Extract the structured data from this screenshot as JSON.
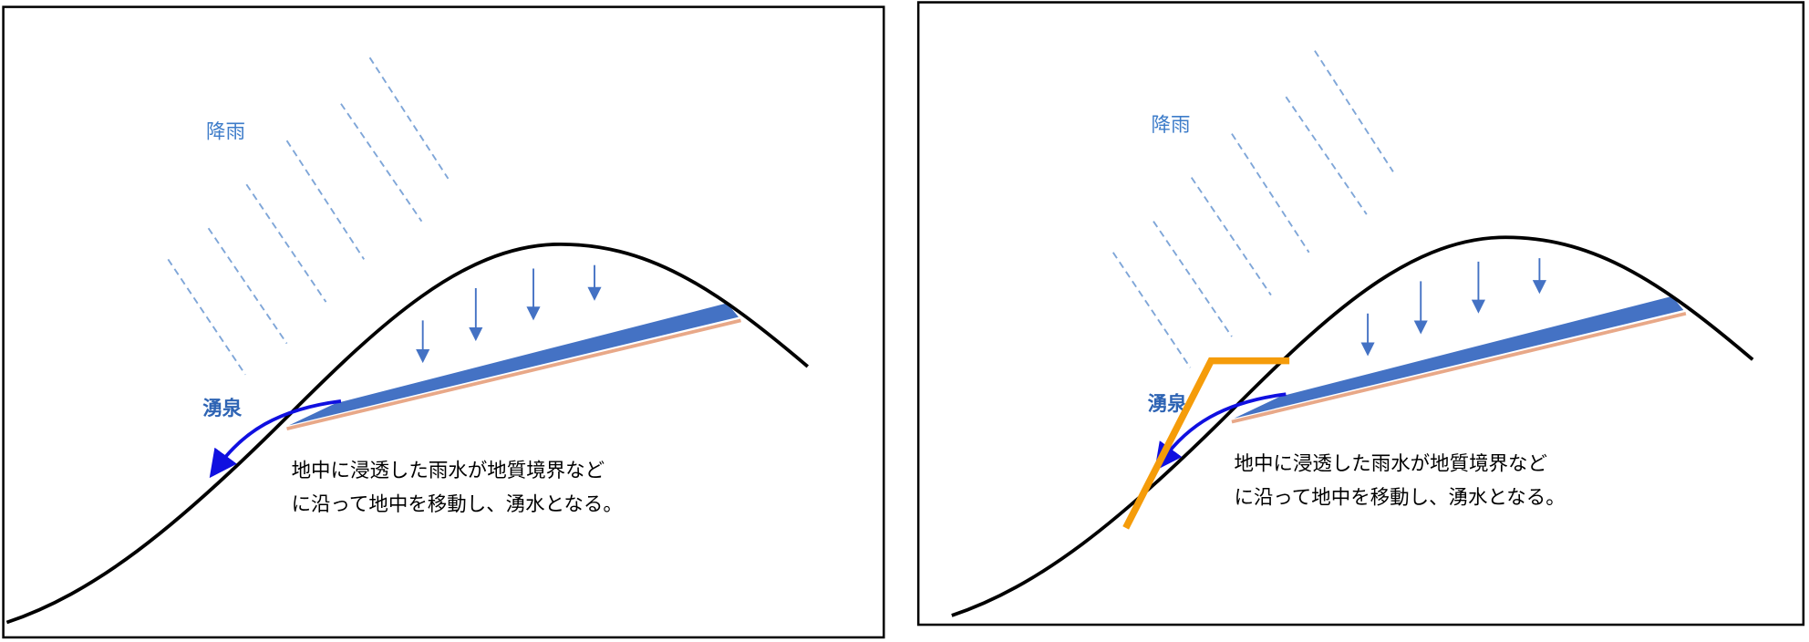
{
  "panels": [
    {
      "rain_label": "降雨",
      "spring_label": "湧泉",
      "description": [
        "地中に浸透した雨水が地質境界など",
        "に沿って地中を移動し、湧水となる。"
      ]
    },
    {
      "rain_label": "降雨",
      "spring_label": "湧泉",
      "description": [
        "地中に浸透した雨水が地質境界など",
        "に沿って地中を移動し、湧水となる。"
      ]
    }
  ]
}
